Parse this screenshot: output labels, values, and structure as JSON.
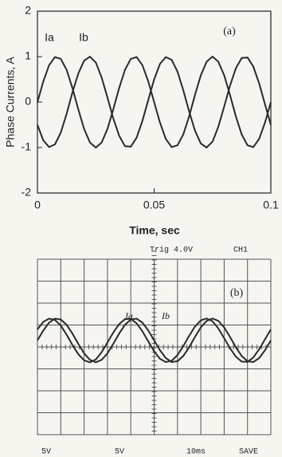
{
  "chart_data": [
    {
      "type": "line",
      "title": "(a)",
      "x_label": "Time, sec",
      "y_label": "Phase Currents, A",
      "x": [
        0,
        0.0025,
        0.005,
        0.0075,
        0.01,
        0.0125,
        0.015,
        0.0175,
        0.02,
        0.0225,
        0.025,
        0.0275,
        0.03,
        0.0325,
        0.035,
        0.0375,
        0.04,
        0.0425,
        0.045,
        0.0475,
        0.05,
        0.0525,
        0.055,
        0.0575,
        0.06,
        0.0625,
        0.065,
        0.0675,
        0.07,
        0.0725,
        0.075,
        0.0775,
        0.08,
        0.0825,
        0.085,
        0.0875,
        0.09,
        0.0925,
        0.095,
        0.0975,
        0.1
      ],
      "series": [
        {
          "name": "Ia",
          "color": "#2a2a2a",
          "values": [
            0,
            0.45,
            0.81,
            0.99,
            0.95,
            0.71,
            0.31,
            -0.16,
            -0.59,
            -0.89,
            -1,
            -0.89,
            -0.59,
            -0.16,
            0.31,
            0.71,
            0.95,
            0.99,
            0.81,
            0.45,
            0,
            -0.45,
            -0.81,
            -0.99,
            -0.95,
            -0.71,
            -0.31,
            0.16,
            0.59,
            0.89,
            1,
            0.89,
            0.59,
            0.16,
            -0.31,
            -0.71,
            -0.95,
            -0.99,
            -0.81,
            -0.45,
            0
          ]
        },
        {
          "name": "Ib",
          "color": "#2a2a2a",
          "values": [
            -0.5,
            -0.84,
            -0.99,
            -0.93,
            -0.67,
            -0.26,
            0.21,
            0.63,
            0.91,
            1.0,
            0.87,
            0.54,
            0.1,
            -0.36,
            -0.74,
            -0.97,
            -0.98,
            -0.78,
            -0.41,
            0.05,
            0.5,
            0.84,
            0.99,
            0.93,
            0.67,
            0.26,
            -0.21,
            -0.63,
            -0.91,
            -1.0,
            -0.87,
            -0.54,
            -0.1,
            0.36,
            0.74,
            0.97,
            0.98,
            0.78,
            0.41,
            -0.05,
            -0.5
          ]
        }
      ],
      "xlim": [
        0,
        0.1
      ],
      "xticks": [
        0,
        0.05,
        0.1
      ],
      "ylim": [
        -2,
        2
      ],
      "yticks": [
        -2,
        -1,
        0,
        1,
        2
      ]
    },
    {
      "type": "scope",
      "title": "(b)",
      "annotations": [
        "Trig 4.0V",
        "CH1"
      ],
      "footer": [
        "5V",
        "5V",
        "10ms",
        "SAVE"
      ],
      "x": [
        0,
        0.25,
        0.5,
        0.75,
        1,
        1.25,
        1.5,
        1.75,
        2,
        2.25,
        2.5,
        2.75,
        3,
        3.25,
        3.5,
        3.75,
        4,
        4.25,
        4.5,
        4.75,
        5,
        5.25,
        5.5,
        5.75,
        6,
        6.25,
        6.5,
        6.75,
        7,
        7.25,
        7.5,
        7.75,
        8,
        8.25,
        8.5,
        8.75,
        9,
        9.25,
        9.5,
        9.75,
        10
      ],
      "series": [
        {
          "name": "Ia",
          "color": "#2a2a2a",
          "values": [
            0.8,
            1.14,
            1.29,
            1.23,
            0.97,
            0.56,
            0.09,
            -0.33,
            -0.61,
            -0.7,
            -0.57,
            -0.24,
            0.2,
            0.66,
            1.04,
            1.27,
            1.28,
            1.08,
            0.71,
            0.25,
            -0.2,
            -0.54,
            -0.69,
            -0.63,
            -0.37,
            0.04,
            0.51,
            0.93,
            1.21,
            1.3,
            1.17,
            0.84,
            0.4,
            -0.06,
            -0.44,
            -0.67,
            -0.68,
            -0.48,
            -0.11,
            0.35,
            0.8
          ]
        },
        {
          "name": "Ib",
          "color": "#2a2a2a",
          "values": [
            0.3,
            0.75,
            1.11,
            1.29,
            1.25,
            1.01,
            0.61,
            0.14,
            -0.29,
            -0.59,
            -0.7,
            -0.59,
            -0.29,
            0.14,
            0.61,
            1.01,
            1.25,
            1.29,
            1.11,
            0.75,
            0.3,
            -0.15,
            -0.51,
            -0.69,
            -0.65,
            -0.41,
            -0.01,
            0.46,
            0.89,
            1.19,
            1.3,
            1.19,
            0.89,
            0.46,
            -0.01,
            -0.41,
            -0.65,
            -0.69,
            -0.51,
            -0.15,
            0.3
          ]
        }
      ],
      "xlim": [
        0,
        10
      ],
      "ylim": [
        -4,
        4
      ]
    }
  ]
}
